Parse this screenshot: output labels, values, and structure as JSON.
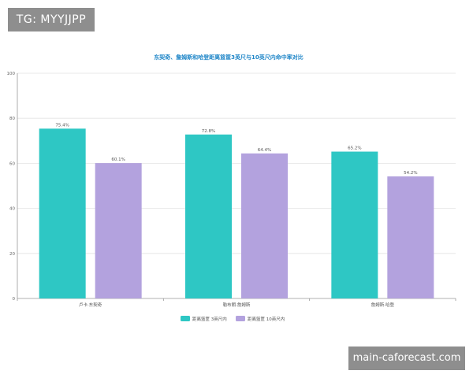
{
  "watermarks": {
    "top_left": "TG: MYYJJPP",
    "bottom_right": "main-caforecast.com"
  },
  "colors": {
    "series1": "#2ec7c4",
    "series2": "#b3a2de",
    "title": "#1f86c8",
    "grid": "#e3e3e3",
    "axis": "#999999",
    "badge": "#8e8e8e"
  },
  "chart_data": {
    "type": "bar",
    "title": "东契奇、詹姆斯和哈登距离篮筐3英尺与10英尺内命中率对比",
    "categories": [
      "卢卡·东契奇",
      "勒布朗·詹姆斯",
      "詹姆斯·哈登"
    ],
    "series": [
      {
        "name": "距离篮筐 3英尺内",
        "values": [
          75.4,
          72.8,
          65.2
        ],
        "labels": [
          "75.4%",
          "72.8%",
          "65.2%"
        ]
      },
      {
        "name": "距离篮筐 10英尺内",
        "values": [
          60.1,
          64.4,
          54.2
        ],
        "labels": [
          "60.1%",
          "64.4%",
          "54.2%"
        ]
      }
    ],
    "ylim": [
      0,
      100
    ],
    "yticks": [
      0,
      20,
      40,
      60,
      80,
      100
    ],
    "grid": true,
    "legend": "bottom-center",
    "xlabel": "",
    "ylabel": ""
  }
}
